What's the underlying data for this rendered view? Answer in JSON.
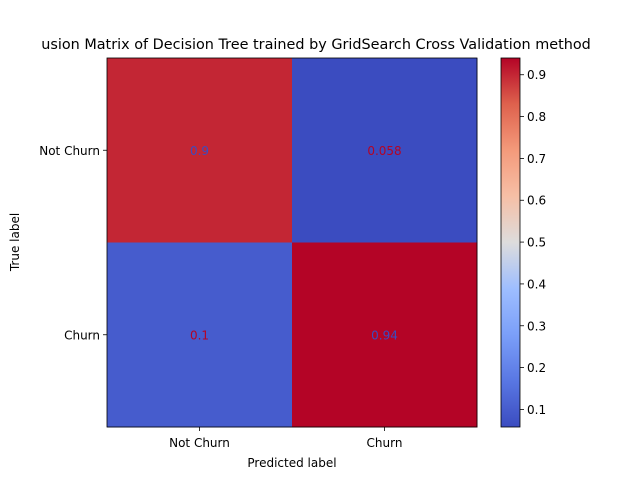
{
  "chart_data": {
    "type": "heatmap",
    "title": "usion Matrix of Decision Tree trained by GridSearch Cross Validation method",
    "xlabel": "Predicted label",
    "ylabel": "True label",
    "x_categories": [
      "Not Churn",
      "Churn"
    ],
    "y_categories": [
      "Not Churn",
      "Churn"
    ],
    "values": [
      [
        0.9,
        0.058
      ],
      [
        0.1,
        0.94
      ]
    ],
    "cell_labels": [
      [
        "0.9",
        "0.058"
      ],
      [
        "0.1",
        "0.94"
      ]
    ],
    "colormap": "coolwarm",
    "colorbar": {
      "range": [
        0.058,
        0.94
      ],
      "ticks": [
        0.1,
        0.2,
        0.3,
        0.4,
        0.5,
        0.6,
        0.7,
        0.8,
        0.9
      ],
      "tick_labels": [
        "0.1",
        "0.2",
        "0.3",
        "0.4",
        "0.5",
        "0.6",
        "0.7",
        "0.8",
        "0.9"
      ]
    },
    "cell_text_colors": [
      [
        "#3b4cc0",
        "#b40426"
      ],
      [
        "#b40426",
        "#3b4cc0"
      ]
    ]
  }
}
